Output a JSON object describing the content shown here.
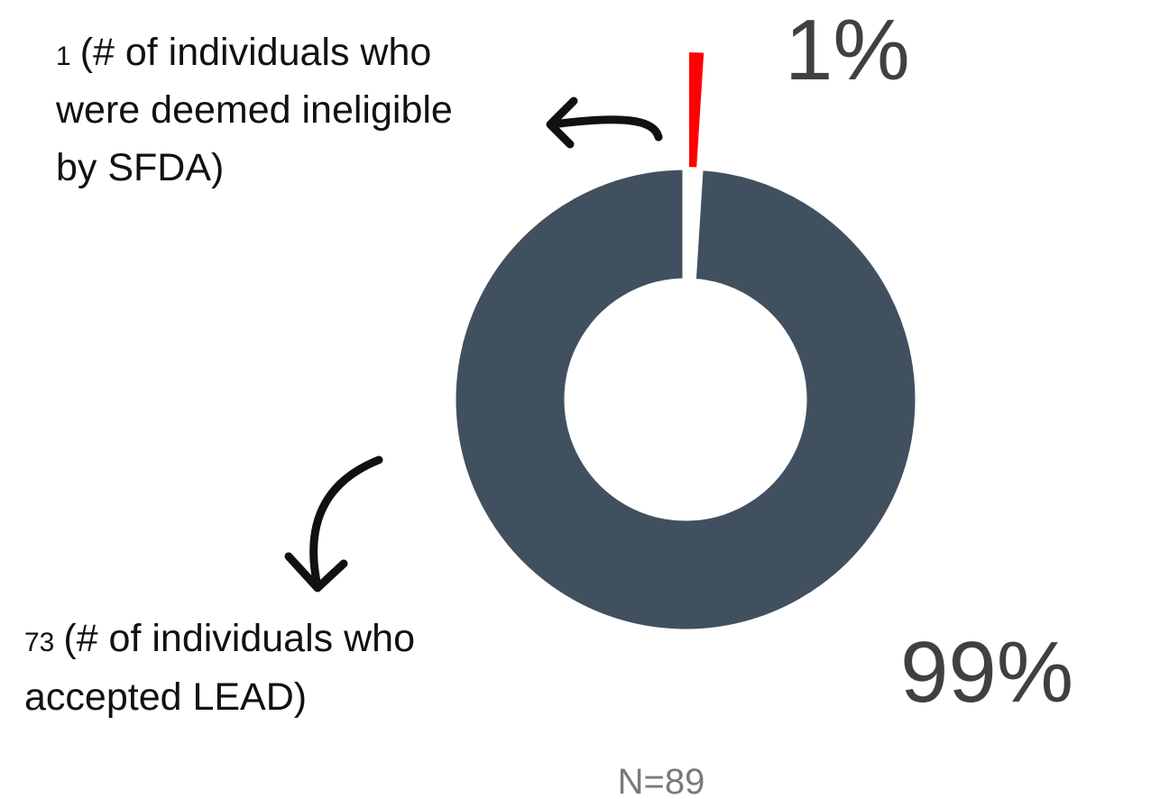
{
  "chart_data": {
    "type": "donut",
    "values": [
      1,
      99
    ],
    "value_labels": [
      "1%",
      "99%"
    ],
    "colors": [
      "#ff0000",
      "#41505f"
    ],
    "annotations": [
      {
        "count": 1,
        "lines": [
          "(# of individuals who",
          "were deemed ineligible",
          "by SFDA)"
        ]
      },
      {
        "count": 73,
        "lines": [
          "(# of individuals who",
          "accepted LEAD)"
        ]
      }
    ],
    "note": "N=89"
  }
}
